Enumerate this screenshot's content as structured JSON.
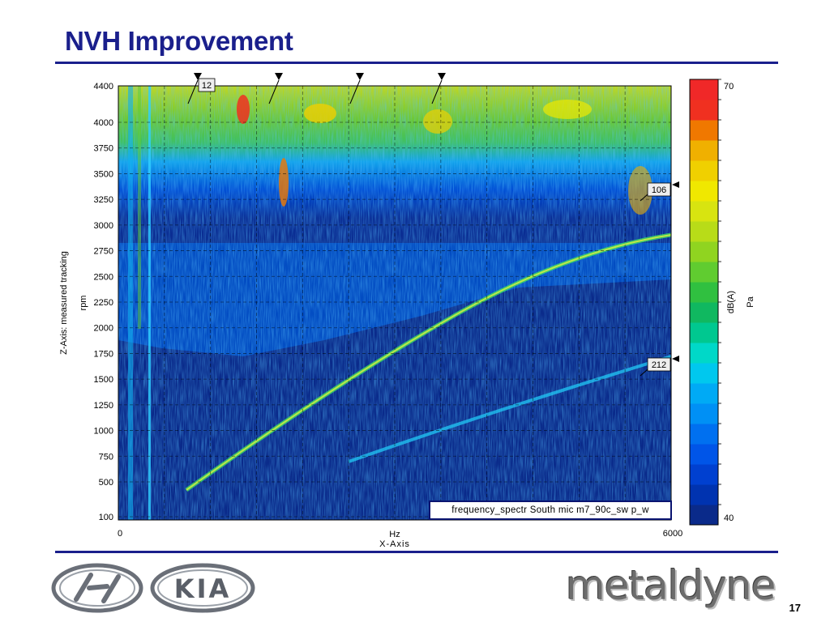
{
  "slide": {
    "title": "NVH Improvement",
    "page_number": "17"
  },
  "chart_data": {
    "type": "heatmap",
    "title": "",
    "xlabel_top": "Hz",
    "xlabel": "X-Axis",
    "ylabel_main": "Z-Axis: measured tracking",
    "ylabel_unit": "rpm",
    "colorbar_label": "dB(A)",
    "colorbar_unit": "Pa",
    "x_ticks": [
      "0",
      "6000"
    ],
    "xlim": [
      0,
      6000
    ],
    "y_ticks": [
      100,
      500,
      750,
      1000,
      1250,
      1500,
      1750,
      2000,
      2250,
      2500,
      2750,
      3000,
      3250,
      3500,
      3750,
      4000,
      4400
    ],
    "ylim": [
      100,
      4400
    ],
    "colorbar_ticks": [
      "40",
      "70"
    ],
    "colorbar_range": [
      40,
      70
    ],
    "colorbar_colors": [
      "#0a2a8a",
      "#0033b0",
      "#0040d0",
      "#0055e8",
      "#0070f0",
      "#0090f5",
      "#00aaf5",
      "#00c8ee",
      "#00d8c8",
      "#00c890",
      "#10b860",
      "#30c040",
      "#60cc30",
      "#90d420",
      "#b8dc18",
      "#d8e410",
      "#f0e800",
      "#f0d000",
      "#f0b000",
      "#f07800",
      "#f03020",
      "#f02828"
    ],
    "legend_text": "frequency_spectr South mic  m7_90c_sw p_w",
    "markers_top": [
      "",
      "",
      "",
      ""
    ],
    "markers_right": [
      "106",
      "212"
    ],
    "marker_top_label": "12",
    "grid": true
  },
  "logos": {
    "left": "hyundai-kia-logo",
    "left_text": "KIA",
    "right": "metaldyne"
  }
}
